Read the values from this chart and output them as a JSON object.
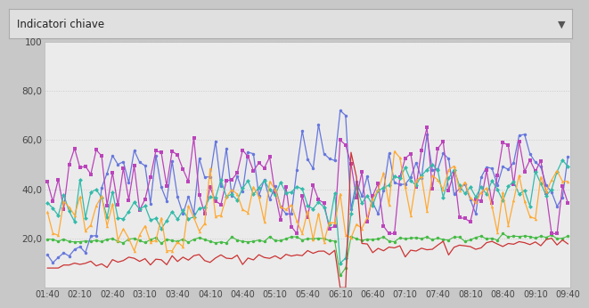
{
  "title": "Indicatori chiave",
  "outer_bg": "#c8c8c8",
  "header_bg": "#e0e0e0",
  "plot_bg": "#ebebeb",
  "grid_color": "#cccccc",
  "grid_style": "dotted",
  "ylim": [
    0,
    100
  ],
  "ytick_vals": [
    20,
    40,
    60,
    80,
    100
  ],
  "ytick_labels": [
    "20,0",
    "40,0",
    "60,0",
    "80,0",
    "100"
  ],
  "xtick_labels": [
    "01:40",
    "02:10",
    "02:40",
    "03:10",
    "03:40",
    "04:10",
    "04:40",
    "05:10",
    "05:40",
    "06:10",
    "06:40",
    "07:10",
    "07:40",
    "08:10",
    "08:40",
    "09:10",
    "09:40"
  ],
  "n_points": 97,
  "colors": {
    "blue": "#6677dd",
    "purple": "#bb44bb",
    "teal": "#33bbaa",
    "orange": "#ffaa33",
    "red": "#cc3333",
    "green": "#44bb44"
  }
}
